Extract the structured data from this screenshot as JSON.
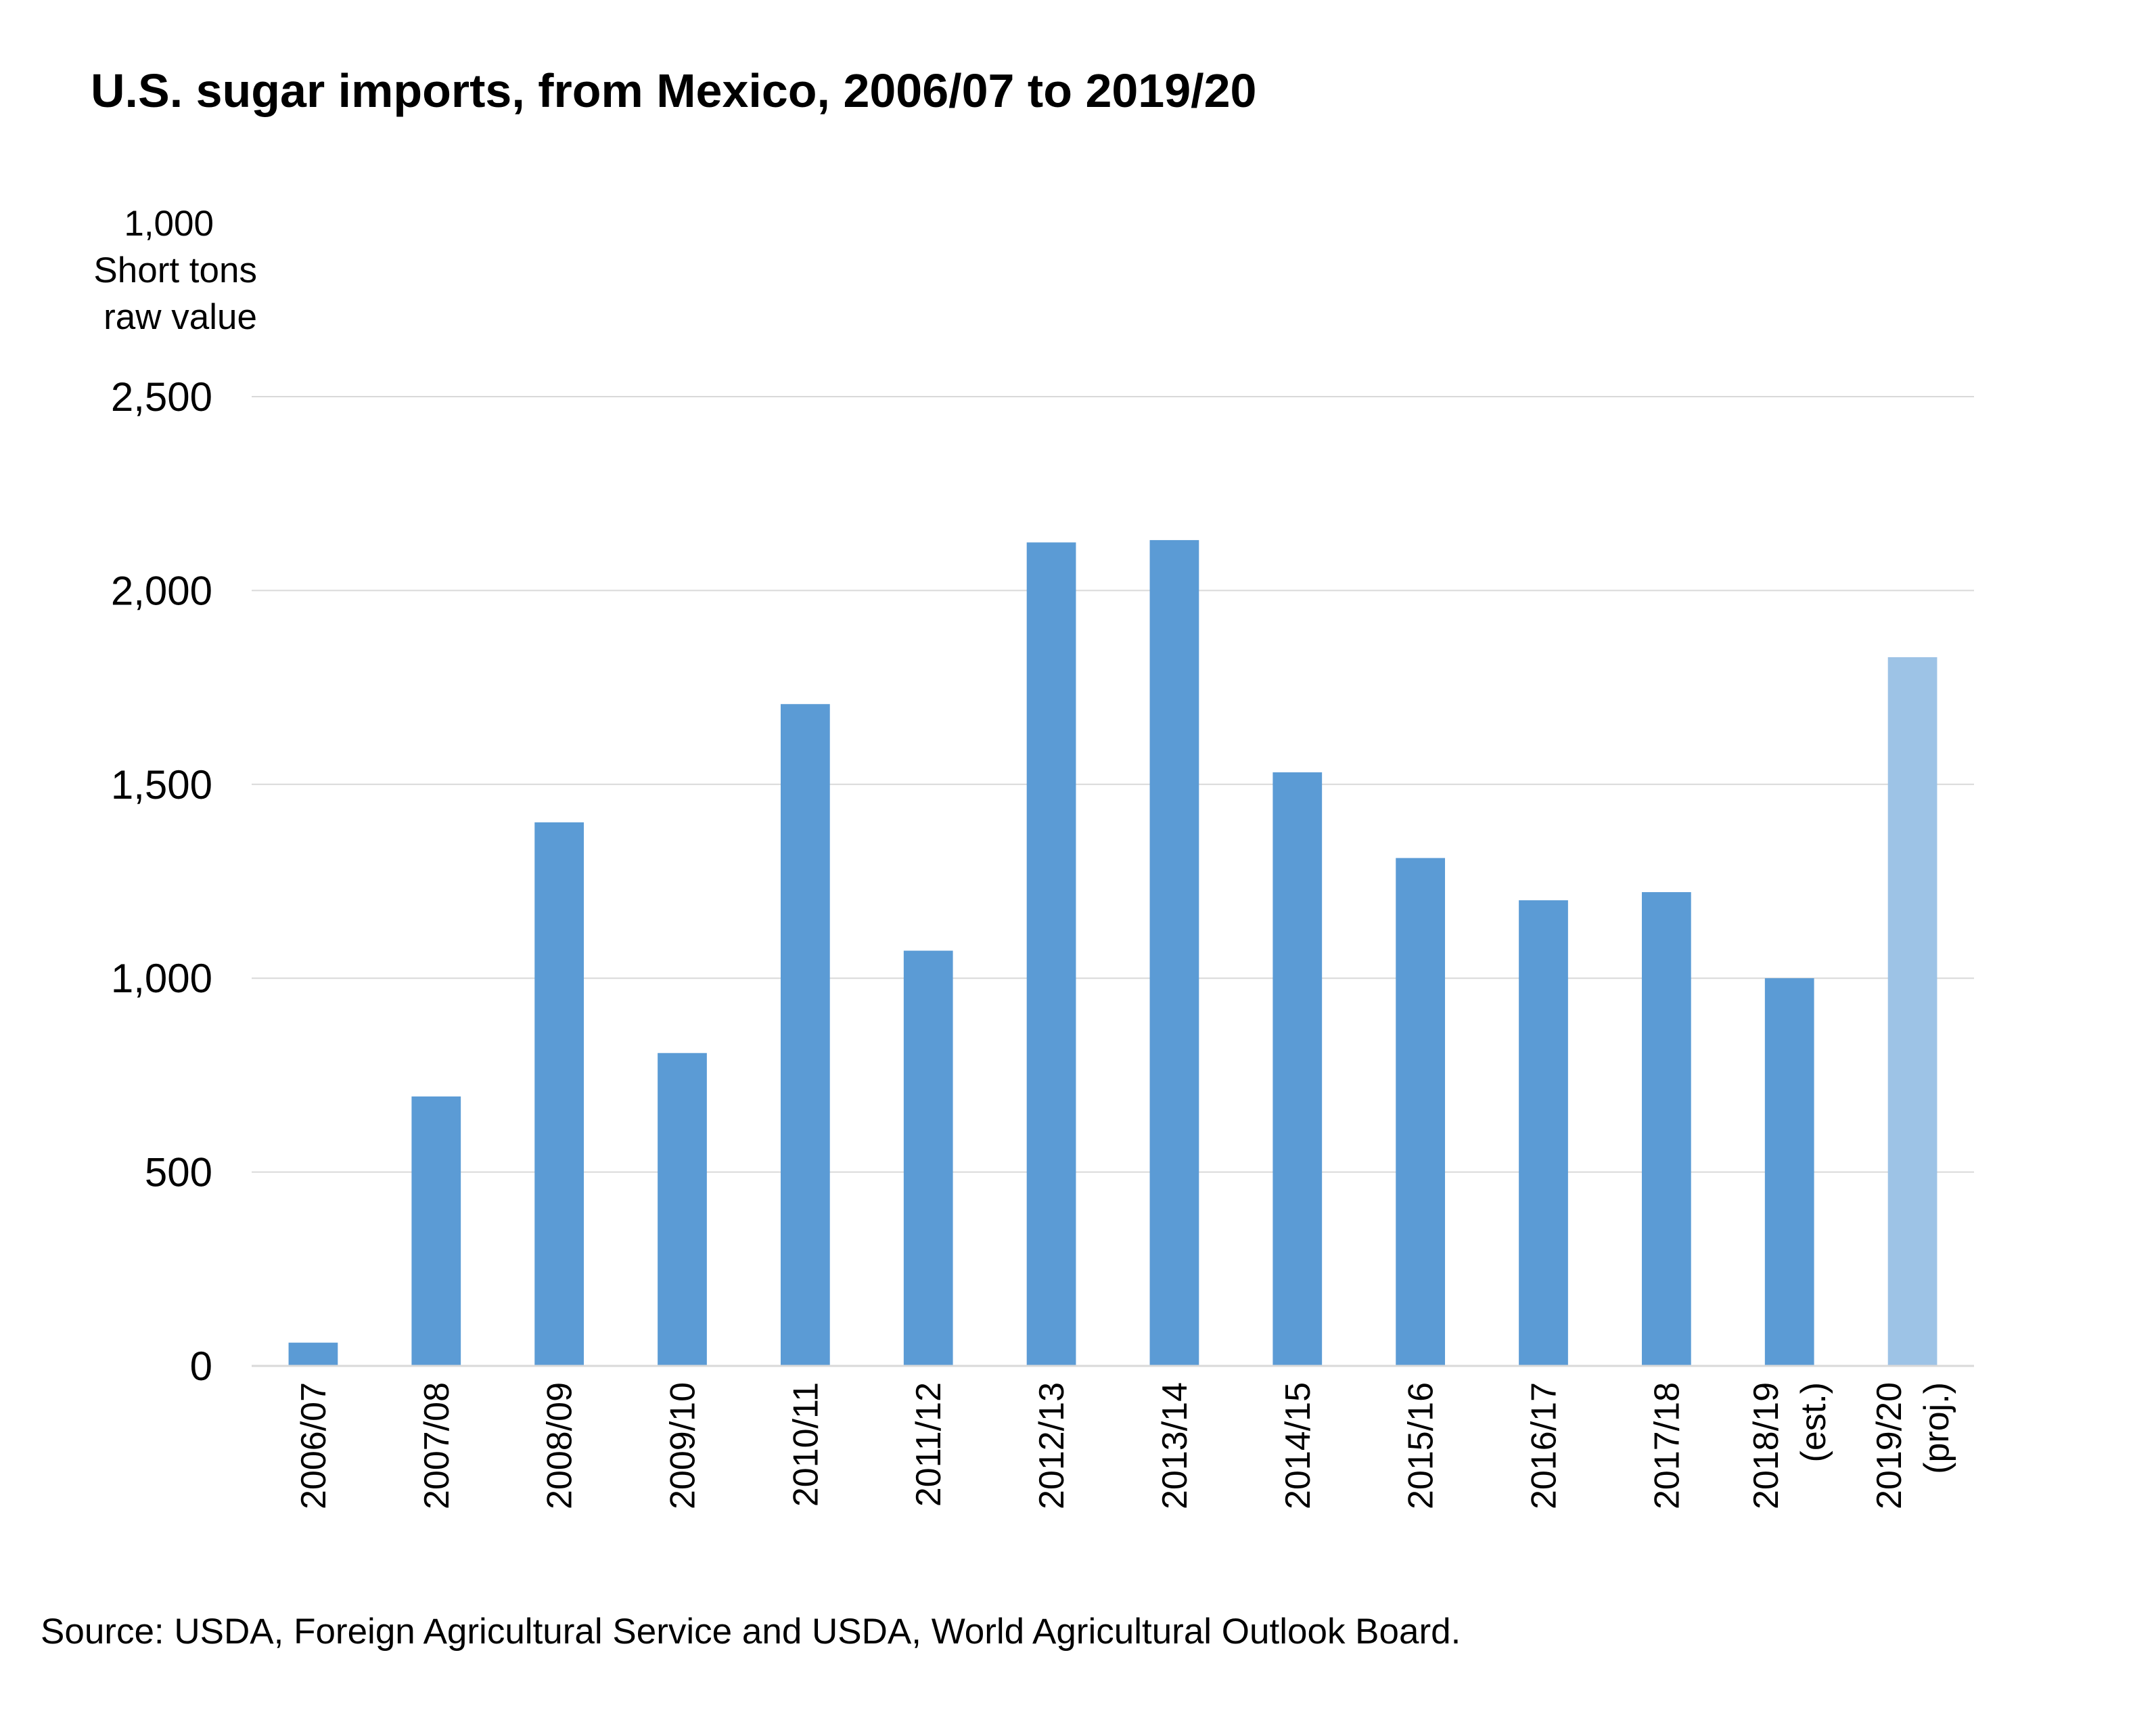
{
  "chart_data": {
    "type": "bar",
    "title": "U.S. sugar imports, from Mexico, 2006/07 to 2019/20",
    "ylabel_lines": [
      "1,000",
      "Short tons",
      "raw value"
    ],
    "xlabel": "",
    "ylim": [
      0,
      2500
    ],
    "yticks": [
      0,
      500,
      1000,
      1500,
      2000,
      2500
    ],
    "ytick_labels": [
      "0",
      "500",
      "1,000",
      "1,500",
      "2,000",
      "2,500"
    ],
    "grid": true,
    "legend": "none",
    "categories": [
      [
        "2006/07"
      ],
      [
        "2007/08"
      ],
      [
        "2008/09"
      ],
      [
        "2009/10"
      ],
      [
        "2010/11"
      ],
      [
        "2011/12"
      ],
      [
        "2012/13"
      ],
      [
        "2013/14"
      ],
      [
        "2014/15"
      ],
      [
        "2015/16"
      ],
      [
        "2016/17"
      ],
      [
        "2017/18"
      ],
      [
        "2018/19",
        "(est.)"
      ],
      [
        "2019/20",
        "(proj.)"
      ]
    ],
    "values": [
      60,
      695,
      1402,
      807,
      1707,
      1071,
      2124,
      2130,
      1531,
      1310,
      1201,
      1222,
      1000,
      1828
    ],
    "bar_colors": [
      "#5b9bd5",
      "#5b9bd5",
      "#5b9bd5",
      "#5b9bd5",
      "#5b9bd5",
      "#5b9bd5",
      "#5b9bd5",
      "#5b9bd5",
      "#5b9bd5",
      "#5b9bd5",
      "#5b9bd5",
      "#5b9bd5",
      "#5b9bd5",
      "#9dc3e6"
    ]
  },
  "source": "Source: USDA, Foreign Agricultural Service and USDA, World Agricultural Outlook Board."
}
